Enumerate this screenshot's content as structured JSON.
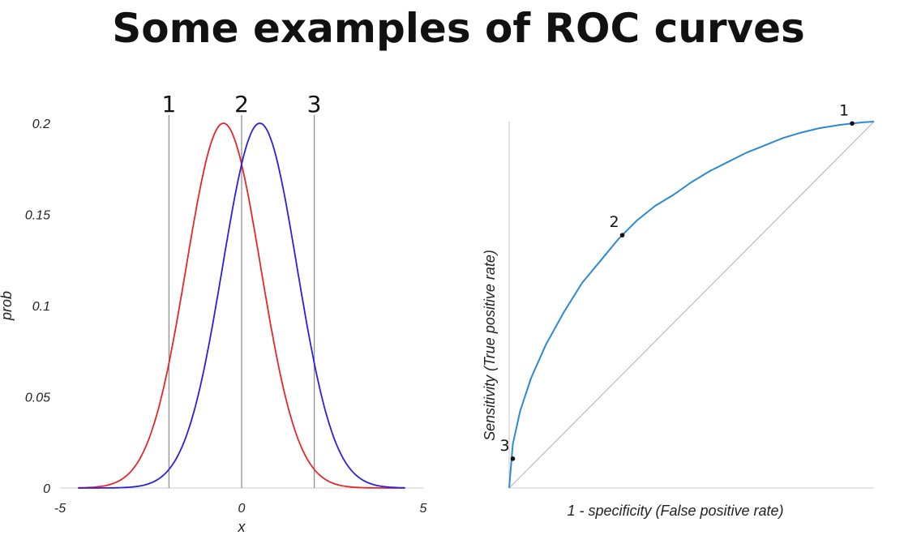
{
  "title": "Some examples of ROC curves",
  "chart_data": [
    {
      "type": "line",
      "xlabel": "x",
      "ylabel": "prob",
      "xlim": [
        -5,
        5
      ],
      "ylim": [
        0,
        0.2
      ],
      "x_ticks": [
        "-5",
        "0",
        "5"
      ],
      "y_ticks": [
        "0",
        "0.05",
        "0.1",
        "0.15",
        "0.2"
      ],
      "series": [
        {
          "color": "#e8262a",
          "mean": -0.5,
          "sd": 2,
          "x_range": [
            -4.5,
            4.5
          ]
        },
        {
          "color": "#2a20e0",
          "mean": 0.5,
          "sd": 2,
          "x_range": [
            -4.5,
            4.5
          ]
        }
      ],
      "thresholds": [
        {
          "label": "1",
          "x": -2
        },
        {
          "label": "2",
          "x": 0
        },
        {
          "label": "3",
          "x": 2
        }
      ]
    },
    {
      "type": "line",
      "xlabel": "1 - specificity (False positive rate)",
      "ylabel": "Sensitivity (True positive rate)",
      "xlim": [
        0,
        1
      ],
      "ylim": [
        0,
        1
      ],
      "series": [
        {
          "color": "#2a8ad6",
          "x": [
            0,
            0.01,
            0.03,
            0.06,
            0.1,
            0.15,
            0.2,
            0.25,
            0.3,
            0.35,
            0.4,
            0.45,
            0.5,
            0.55,
            0.6,
            0.65,
            0.7,
            0.75,
            0.8,
            0.85,
            0.9,
            0.94,
            0.97,
            1
          ],
          "y": [
            0,
            0.12,
            0.21,
            0.3,
            0.39,
            0.48,
            0.56,
            0.62,
            0.68,
            0.73,
            0.77,
            0.8,
            0.835,
            0.865,
            0.89,
            0.915,
            0.935,
            0.955,
            0.97,
            0.982,
            0.99,
            0.995,
            0.998,
            1
          ]
        }
      ],
      "diagonal_color": "#b0b0b0",
      "points": [
        {
          "label": "1",
          "x": 0.94,
          "y": 0.995
        },
        {
          "label": "2",
          "x": 0.31,
          "y": 0.69
        },
        {
          "label": "3",
          "x": 0.01,
          "y": 0.08
        }
      ]
    }
  ]
}
